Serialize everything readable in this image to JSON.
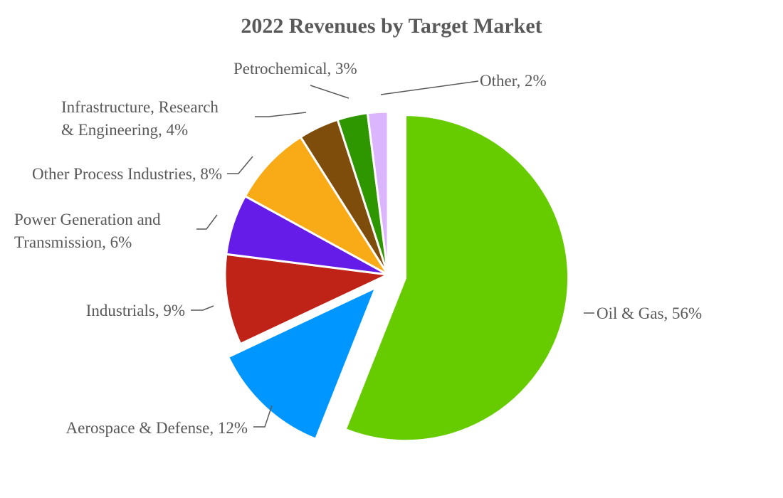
{
  "chart_data": {
    "type": "pie",
    "title": "2022 Revenues by Target Market",
    "start_angle_deg": 0,
    "direction": "clockwise",
    "exploded": [
      "Oil & Gas",
      "Aerospace & Defense"
    ],
    "slices": [
      {
        "name": "Oil & Gas",
        "value": 56,
        "color": "#66CC00",
        "label_lines": [
          "Oil & Gas, 56%"
        ],
        "label_side": "right"
      },
      {
        "name": "Aerospace & Defense",
        "value": 12,
        "color": "#0096FF",
        "label_lines": [
          "Aerospace & Defense, 12%"
        ],
        "label_side": "left"
      },
      {
        "name": "Industrials",
        "value": 9,
        "color": "#BF2318",
        "label_lines": [
          "Industrials, 9%"
        ],
        "label_side": "left"
      },
      {
        "name": "Power Generation and Transmission",
        "value": 6,
        "color": "#661CE8",
        "label_lines": [
          "Power Generation and",
          "Transmission, 6%"
        ],
        "label_side": "left"
      },
      {
        "name": "Other Process Industries",
        "value": 8,
        "color": "#F9AA17",
        "label_lines": [
          "Other Process Industries, 8%"
        ],
        "label_side": "left"
      },
      {
        "name": "Infrastructure, Research & Engineering",
        "value": 4,
        "color": "#7E4D0B",
        "label_lines": [
          "Infrastructure, Research",
          "& Engineering, 4%"
        ],
        "label_side": "left"
      },
      {
        "name": "Petrochemical",
        "value": 3,
        "color": "#2E9700",
        "label_lines": [
          "Petrochemical, 3%"
        ],
        "label_side": "top"
      },
      {
        "name": "Other",
        "value": 2,
        "color": "#DCB5FF",
        "label_lines": [
          "Other, 2%"
        ],
        "label_side": "right"
      }
    ]
  }
}
